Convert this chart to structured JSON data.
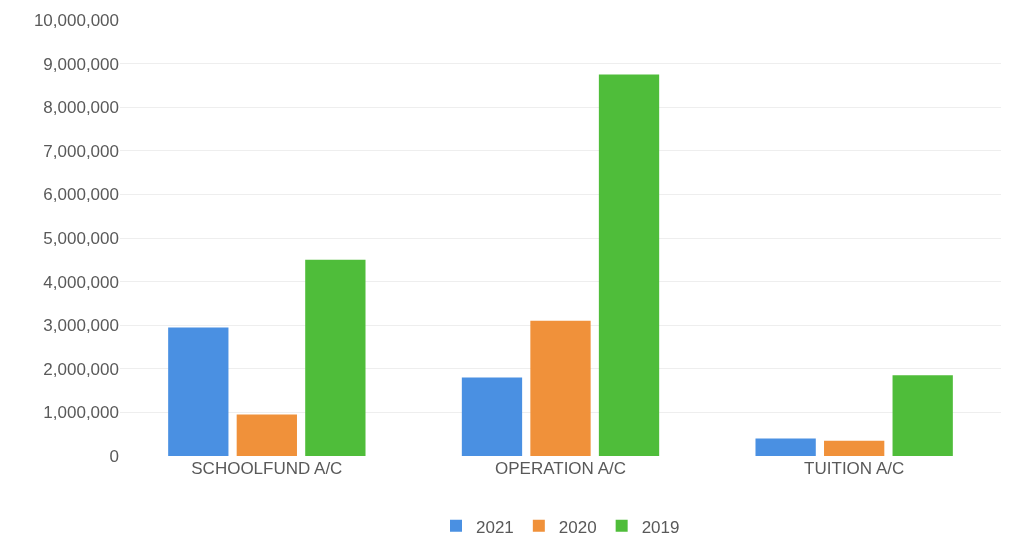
{
  "chart_data": {
    "type": "bar",
    "categories": [
      "SCHOOLFUND A/C",
      "OPERATION A/C",
      "TUITION A/C"
    ],
    "series": [
      {
        "name": "2021",
        "color": "#4a90e2",
        "values": [
          2950000,
          1800000,
          400000
        ]
      },
      {
        "name": "2020",
        "color": "#f0913a",
        "values": [
          950000,
          3100000,
          350000
        ]
      },
      {
        "name": "2019",
        "color": "#4fbd3a",
        "values": [
          4500000,
          8750000,
          1850000
        ]
      }
    ],
    "ylim": [
      0,
      10000000
    ],
    "yticks": [
      {
        "value": 0,
        "label": "0"
      },
      {
        "value": 1000000,
        "label": "1,000,000"
      },
      {
        "value": 2000000,
        "label": "2,000,000"
      },
      {
        "value": 3000000,
        "label": "3,000,000"
      },
      {
        "value": 4000000,
        "label": "4,000,000"
      },
      {
        "value": 5000000,
        "label": "5,000,000"
      },
      {
        "value": 6000000,
        "label": "6,000,000"
      },
      {
        "value": 7000000,
        "label": "7,000,000"
      },
      {
        "value": 8000000,
        "label": "8,000,000"
      },
      {
        "value": 9000000,
        "label": "9,000,000"
      },
      {
        "value": 10000000,
        "label": "10,000,000"
      }
    ],
    "grid": "y",
    "legend": "bottom"
  }
}
